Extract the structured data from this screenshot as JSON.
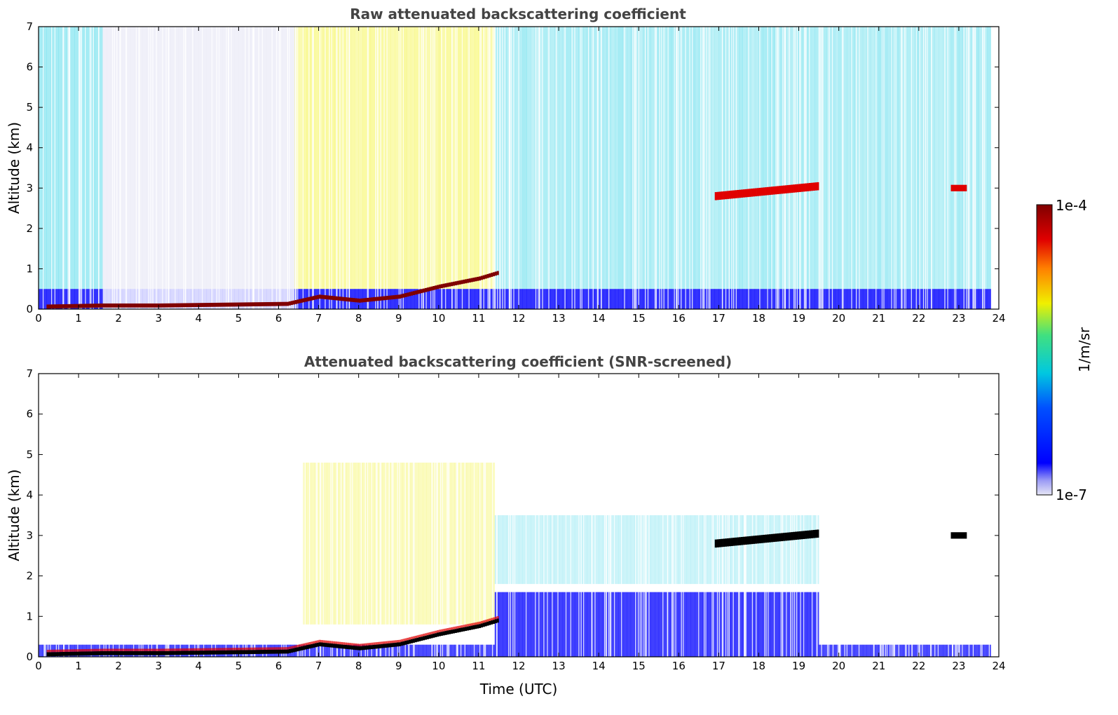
{
  "chart_data": [
    {
      "type": "heatmap",
      "title": "Raw attenuated backscattering coefficient",
      "xlabel": "",
      "ylabel": "Altitude (km)",
      "xlim": [
        0,
        24
      ],
      "ylim": [
        0,
        7
      ],
      "xticks": [
        0,
        1,
        2,
        3,
        4,
        5,
        6,
        7,
        8,
        9,
        10,
        11,
        12,
        13,
        14,
        15,
        16,
        17,
        18,
        19,
        20,
        21,
        22,
        23,
        24
      ],
      "yticks": [
        0,
        1,
        2,
        3,
        4,
        5,
        6,
        7
      ],
      "features": [
        {
          "name": "boundary-layer",
          "times_utc": [
            0,
            1.6,
            3,
            6.2,
            7,
            8,
            9,
            10,
            11,
            11.5
          ],
          "top_km": [
            0.05,
            0.08,
            0.08,
            0.12,
            0.3,
            0.2,
            0.3,
            0.55,
            0.75,
            0.9
          ]
        },
        {
          "name": "mid-level-cloud",
          "time_start_utc": 16.9,
          "time_end_utc": 19.5,
          "altitude_km": [
            2.8,
            3.05
          ]
        },
        {
          "name": "cloud-23h",
          "time_start_utc": 22.8,
          "time_end_utc": 23.2,
          "altitude_km": 3.0
        }
      ]
    },
    {
      "type": "heatmap",
      "title": "Attenuated backscattering coefficient (SNR-screened)",
      "xlabel": "Time (UTC)",
      "ylabel": "Altitude (km)",
      "xlim": [
        0,
        24
      ],
      "ylim": [
        0,
        7
      ],
      "xticks": [
        0,
        1,
        2,
        3,
        4,
        5,
        6,
        7,
        8,
        9,
        10,
        11,
        12,
        13,
        14,
        15,
        16,
        17,
        18,
        19,
        20,
        21,
        22,
        23,
        24
      ],
      "yticks": [
        0,
        1,
        2,
        3,
        4,
        5,
        6,
        7
      ]
    }
  ],
  "colorbar": {
    "max_label": "1e-4",
    "min_label": "1e-7",
    "unit_label": "1/m/sr",
    "scale": "log",
    "colormap": "jet"
  },
  "colors": {
    "low": "#e6e6f5",
    "blue": "#0000ff",
    "cyan": "#00c8e0",
    "yellow": "#f0f000",
    "red": "#e00000",
    "high": "#800000"
  }
}
